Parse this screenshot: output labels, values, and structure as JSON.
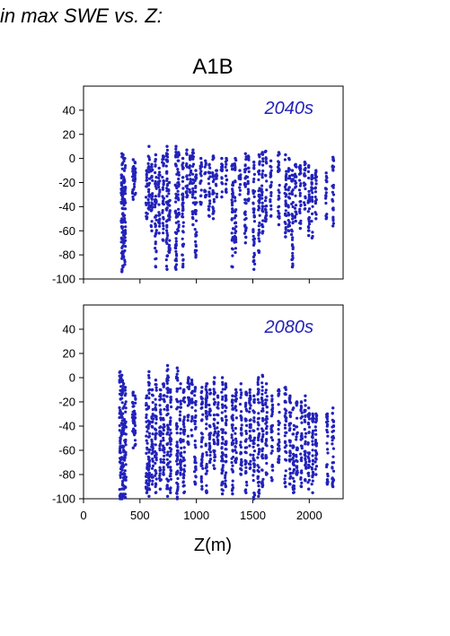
{
  "header": "in max SWE vs. Z:",
  "chart_data": {
    "type": "scatter",
    "title": "A1B",
    "xlabel": "Z(m)",
    "ylabel": "",
    "xlim": [
      0,
      2300
    ],
    "ylim": [
      -100,
      60
    ],
    "xticks": [
      0,
      500,
      1000,
      1500,
      2000
    ],
    "yticks": [
      -100,
      -80,
      -60,
      -40,
      -20,
      0,
      20,
      40
    ],
    "marker_color": "#2222bb",
    "panels": [
      {
        "name": "2040s",
        "columns": [
          {
            "x": 340,
            "ymin": -94,
            "ymax": 4
          },
          {
            "x": 350,
            "ymin": -90,
            "ymax": 3
          },
          {
            "x": 365,
            "ymin": -88,
            "ymax": 0
          },
          {
            "x": 440,
            "ymin": -34,
            "ymax": -1
          },
          {
            "x": 455,
            "ymin": -30,
            "ymax": -3
          },
          {
            "x": 560,
            "ymin": -50,
            "ymax": -10
          },
          {
            "x": 580,
            "ymin": -42,
            "ymax": 10
          },
          {
            "x": 605,
            "ymin": -60,
            "ymax": -5
          },
          {
            "x": 640,
            "ymin": -90,
            "ymax": 3
          },
          {
            "x": 670,
            "ymin": -62,
            "ymax": -8
          },
          {
            "x": 705,
            "ymin": -68,
            "ymax": 2
          },
          {
            "x": 740,
            "ymin": -92,
            "ymax": 10
          },
          {
            "x": 760,
            "ymin": -78,
            "ymax": -20
          },
          {
            "x": 820,
            "ymin": -92,
            "ymax": 10
          },
          {
            "x": 840,
            "ymin": -60,
            "ymax": 5
          },
          {
            "x": 880,
            "ymin": -90,
            "ymax": 0
          },
          {
            "x": 915,
            "ymin": -32,
            "ymax": 7
          },
          {
            "x": 945,
            "ymin": -28,
            "ymax": 2
          },
          {
            "x": 970,
            "ymin": -55,
            "ymax": 7
          },
          {
            "x": 995,
            "ymin": -82,
            "ymax": -10
          },
          {
            "x": 1040,
            "ymin": -38,
            "ymax": 0
          },
          {
            "x": 1080,
            "ymin": -32,
            "ymax": -2
          },
          {
            "x": 1115,
            "ymin": -48,
            "ymax": -5
          },
          {
            "x": 1150,
            "ymin": -50,
            "ymax": 2
          },
          {
            "x": 1180,
            "ymin": -32,
            "ymax": -10
          },
          {
            "x": 1225,
            "ymin": -32,
            "ymax": 0
          },
          {
            "x": 1265,
            "ymin": -28,
            "ymax": 0
          },
          {
            "x": 1320,
            "ymin": -90,
            "ymax": -5
          },
          {
            "x": 1345,
            "ymin": -78,
            "ymax": 0
          },
          {
            "x": 1385,
            "ymin": -30,
            "ymax": -10
          },
          {
            "x": 1435,
            "ymin": -70,
            "ymax": 4
          },
          {
            "x": 1460,
            "ymin": -35,
            "ymax": 2
          },
          {
            "x": 1510,
            "ymin": -92,
            "ymax": -3
          },
          {
            "x": 1555,
            "ymin": -78,
            "ymax": 3
          },
          {
            "x": 1585,
            "ymin": -62,
            "ymax": 5
          },
          {
            "x": 1615,
            "ymin": -52,
            "ymax": 6
          },
          {
            "x": 1660,
            "ymin": -48,
            "ymax": -2
          },
          {
            "x": 1730,
            "ymin": -55,
            "ymax": 5
          },
          {
            "x": 1790,
            "ymin": -65,
            "ymax": 3
          },
          {
            "x": 1820,
            "ymin": -60,
            "ymax": 0
          },
          {
            "x": 1850,
            "ymin": -90,
            "ymax": -10
          },
          {
            "x": 1880,
            "ymin": -52,
            "ymax": -5
          },
          {
            "x": 1920,
            "ymin": -58,
            "ymax": -6
          },
          {
            "x": 1960,
            "ymin": -42,
            "ymax": -3
          },
          {
            "x": 1995,
            "ymin": -64,
            "ymax": -6
          },
          {
            "x": 2025,
            "ymin": -66,
            "ymax": -14
          },
          {
            "x": 2060,
            "ymin": -50,
            "ymax": -10
          },
          {
            "x": 2150,
            "ymin": -50,
            "ymax": -12
          },
          {
            "x": 2210,
            "ymin": -56,
            "ymax": 1
          }
        ]
      },
      {
        "name": "2080s",
        "columns": [
          {
            "x": 325,
            "ymin": -100,
            "ymax": 5
          },
          {
            "x": 340,
            "ymin": -100,
            "ymax": 2
          },
          {
            "x": 355,
            "ymin": -98,
            "ymax": -5
          },
          {
            "x": 370,
            "ymin": -99,
            "ymax": -8
          },
          {
            "x": 440,
            "ymin": -58,
            "ymax": -12
          },
          {
            "x": 455,
            "ymin": -56,
            "ymax": -15
          },
          {
            "x": 560,
            "ymin": -95,
            "ymax": -15
          },
          {
            "x": 580,
            "ymin": -98,
            "ymax": 5
          },
          {
            "x": 610,
            "ymin": -88,
            "ymax": -10
          },
          {
            "x": 640,
            "ymin": -95,
            "ymax": -2
          },
          {
            "x": 680,
            "ymin": -92,
            "ymax": -10
          },
          {
            "x": 710,
            "ymin": -80,
            "ymax": -5
          },
          {
            "x": 745,
            "ymin": -98,
            "ymax": 10
          },
          {
            "x": 770,
            "ymin": -95,
            "ymax": -10
          },
          {
            "x": 830,
            "ymin": -100,
            "ymax": 8
          },
          {
            "x": 860,
            "ymin": -80,
            "ymax": -5
          },
          {
            "x": 890,
            "ymin": -95,
            "ymax": -10
          },
          {
            "x": 930,
            "ymin": -55,
            "ymax": 0
          },
          {
            "x": 960,
            "ymin": -48,
            "ymax": -2
          },
          {
            "x": 990,
            "ymin": -88,
            "ymax": -8
          },
          {
            "x": 1050,
            "ymin": -92,
            "ymax": -8
          },
          {
            "x": 1090,
            "ymin": -95,
            "ymax": -5
          },
          {
            "x": 1120,
            "ymin": -70,
            "ymax": -10
          },
          {
            "x": 1160,
            "ymin": -75,
            "ymax": 0
          },
          {
            "x": 1190,
            "ymin": -55,
            "ymax": -15
          },
          {
            "x": 1230,
            "ymin": -96,
            "ymax": 0
          },
          {
            "x": 1260,
            "ymin": -90,
            "ymax": -5
          },
          {
            "x": 1320,
            "ymin": -96,
            "ymax": -15
          },
          {
            "x": 1350,
            "ymin": -70,
            "ymax": -10
          },
          {
            "x": 1395,
            "ymin": -80,
            "ymax": -5
          },
          {
            "x": 1440,
            "ymin": -95,
            "ymax": -12
          },
          {
            "x": 1475,
            "ymin": -75,
            "ymax": -10
          },
          {
            "x": 1510,
            "ymin": -100,
            "ymax": -15
          },
          {
            "x": 1550,
            "ymin": -98,
            "ymax": 0
          },
          {
            "x": 1585,
            "ymin": -90,
            "ymax": 2
          },
          {
            "x": 1620,
            "ymin": -80,
            "ymax": -5
          },
          {
            "x": 1670,
            "ymin": -85,
            "ymax": -15
          },
          {
            "x": 1730,
            "ymin": -70,
            "ymax": -10
          },
          {
            "x": 1790,
            "ymin": -90,
            "ymax": -8
          },
          {
            "x": 1830,
            "ymin": -88,
            "ymax": -15
          },
          {
            "x": 1860,
            "ymin": -95,
            "ymax": -25
          },
          {
            "x": 1890,
            "ymin": -80,
            "ymax": -20
          },
          {
            "x": 1930,
            "ymin": -90,
            "ymax": -20
          },
          {
            "x": 1965,
            "ymin": -85,
            "ymax": -15
          },
          {
            "x": 1995,
            "ymin": -92,
            "ymax": -25
          },
          {
            "x": 2030,
            "ymin": -95,
            "ymax": -30
          },
          {
            "x": 2060,
            "ymin": -80,
            "ymax": -30
          },
          {
            "x": 2160,
            "ymin": -88,
            "ymax": -30
          },
          {
            "x": 2210,
            "ymin": -90,
            "ymax": -25
          }
        ]
      }
    ]
  }
}
